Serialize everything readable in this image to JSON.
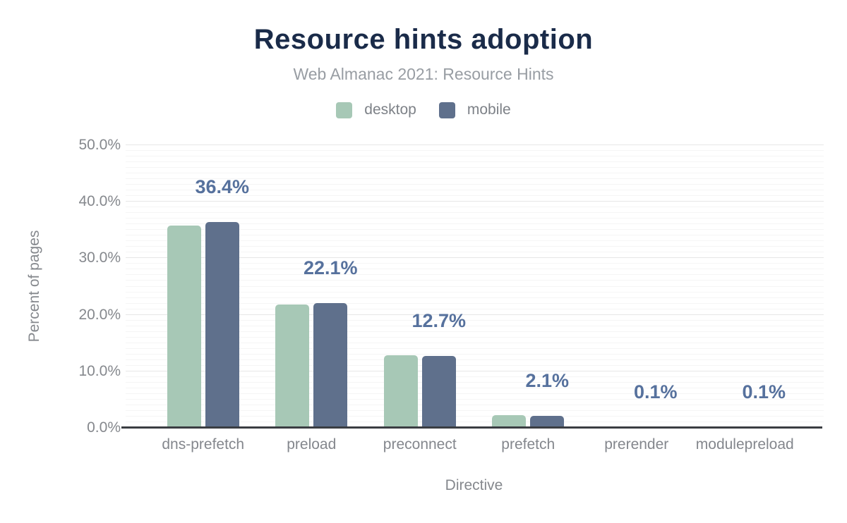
{
  "header": {
    "title": "Resource hints adoption",
    "subtitle": "Web Almanac 2021: Resource Hints"
  },
  "legend": [
    {
      "label": "desktop",
      "color": "#a7c8b6"
    },
    {
      "label": "mobile",
      "color": "#5f708c"
    }
  ],
  "chart_data": {
    "type": "bar",
    "title": "Resource hints adoption",
    "subtitle": "Web Almanac 2021: Resource Hints",
    "categories": [
      "dns-prefetch",
      "preload",
      "preconnect",
      "prefetch",
      "prerender",
      "modulepreload"
    ],
    "series": [
      {
        "name": "desktop",
        "color": "#a7c8b6",
        "values": [
          35.8,
          21.8,
          12.9,
          2.3,
          0.1,
          0.1
        ]
      },
      {
        "name": "mobile",
        "color": "#5f708c",
        "values": [
          36.4,
          22.1,
          12.7,
          2.1,
          0.1,
          0.1
        ]
      }
    ],
    "data_labels": {
      "on_series": "mobile",
      "values": [
        "36.4%",
        "22.1%",
        "12.7%",
        "2.1%",
        "0.1%",
        "0.1%"
      ],
      "color": "#56719d"
    },
    "xlabel": "Directive",
    "ylabel": "Percent of pages",
    "ylim": [
      0,
      50
    ],
    "yticks": [
      {
        "value": 0,
        "label": "0.0%"
      },
      {
        "value": 10,
        "label": "10.0%"
      },
      {
        "value": 20,
        "label": "20.0%"
      },
      {
        "value": 30,
        "label": "30.0%"
      },
      {
        "value": 40,
        "label": "40.0%"
      },
      {
        "value": 50,
        "label": "50.0%"
      }
    ],
    "grid": {
      "major_step": 10,
      "minor_step": 1,
      "legend_position": "top"
    }
  }
}
